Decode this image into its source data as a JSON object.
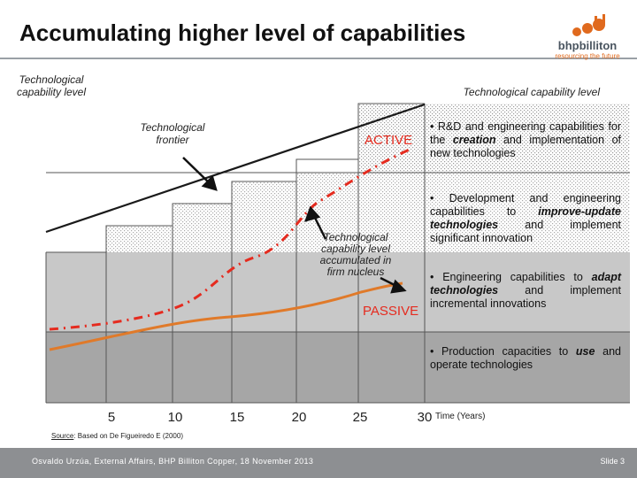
{
  "header": {
    "title": "Accumulating higher level of capabilities",
    "logo_name": "bhpbilliton",
    "logo_tagline": "resourcing the future"
  },
  "diagram": {
    "y_axis_label": "Technological capability level",
    "right_axis_label": "Technological capability level",
    "frontier_label": "Technological frontier",
    "active_label": "ACTIVE",
    "passive_label": "PASSIVE",
    "accumulated_label": "Technological capability level accumulated in firm nucleus",
    "x_axis_label": "Time (Years)",
    "x_ticks": [
      "5",
      "10",
      "15",
      "20",
      "25",
      "30"
    ]
  },
  "descriptions": [
    {
      "parts": [
        "• R&D and engineering capabilities for the ",
        "creation",
        " and implementation of new technologies"
      ]
    },
    {
      "parts": [
        "• Development and engineering capabilities to ",
        "improve-update technologies",
        " and implement significant innovation"
      ]
    },
    {
      "parts": [
        "• Engineering capabilities to ",
        "adapt technologies",
        " and implement incremental innovations"
      ]
    },
    {
      "parts": [
        "• Production capacities to ",
        "use",
        " and operate technologies"
      ]
    }
  ],
  "source": {
    "label": "Source",
    "text": ": Based on De Figueiredo E (2000)"
  },
  "footer": {
    "left": "Osvaldo Urzúa, External Affairs, BHP Billiton Copper, 18 November 2013",
    "right": "Slide 3"
  },
  "colors": {
    "curve": "#e52b1f",
    "frontier": "#1a1a1a",
    "footer": "#8d8f92"
  }
}
